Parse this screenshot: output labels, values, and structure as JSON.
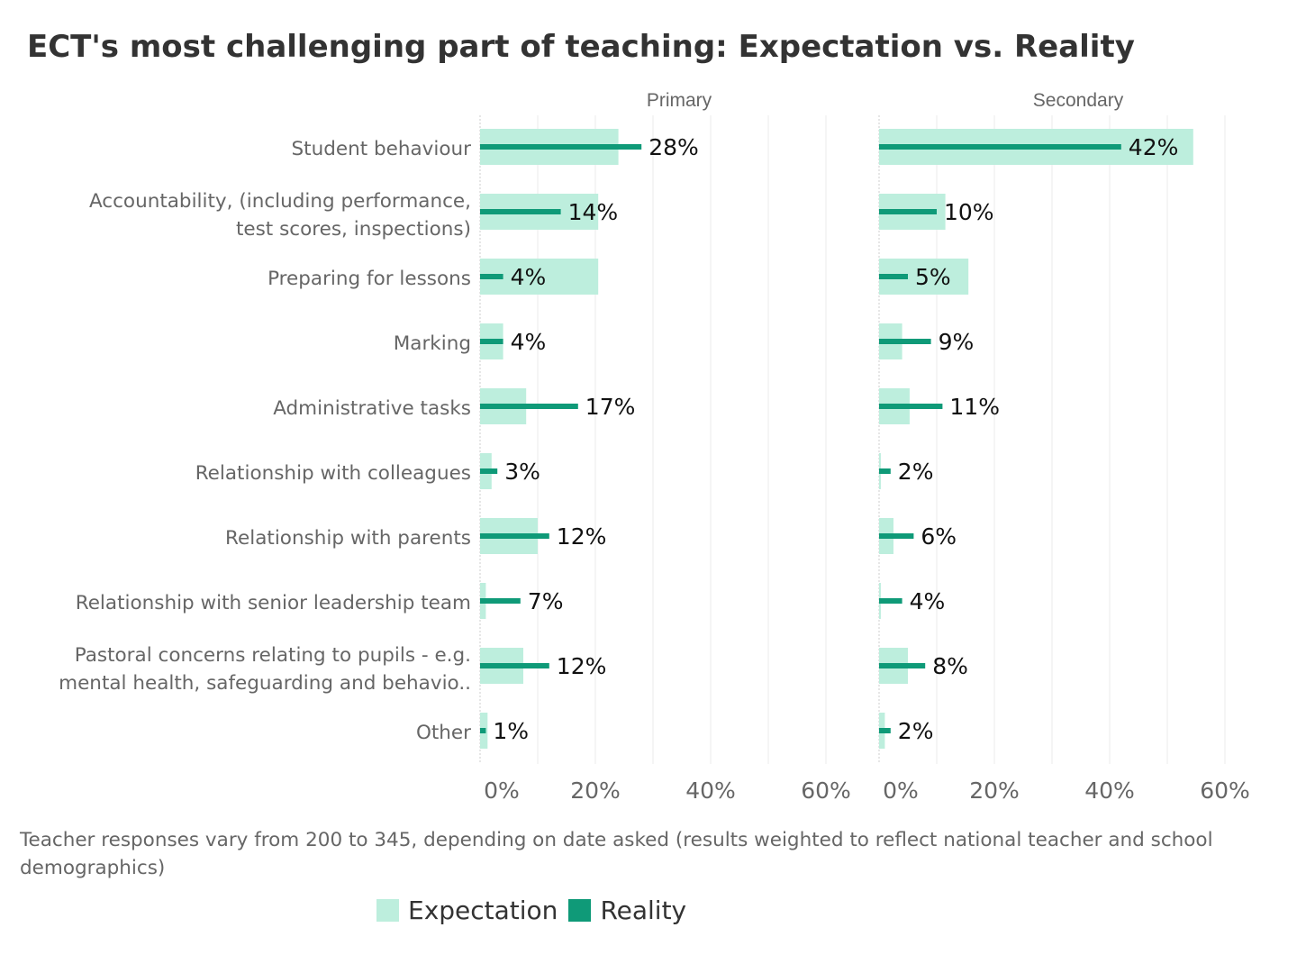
{
  "chart_data": {
    "type": "bar",
    "title": "ECT's most challenging part of teaching: Expectation vs. Reality",
    "facets": [
      "Primary",
      "Secondary"
    ],
    "categories": [
      [
        "Student behaviour"
      ],
      [
        "Accountability, (including performance,",
        "test scores, inspections)"
      ],
      [
        "Preparing for lessons"
      ],
      [
        "Marking"
      ],
      [
        "Administrative tasks"
      ],
      [
        "Relationship with colleagues"
      ],
      [
        "Relationship with parents"
      ],
      [
        "Relationship with senior leadership team"
      ],
      [
        "Pastoral concerns relating to pupils - e.g.",
        "mental health, safeguarding and behavio.."
      ],
      [
        "Other"
      ]
    ],
    "series": [
      {
        "name": "Expectation",
        "color": "#bdeedd",
        "Primary": [
          24,
          20.5,
          20.5,
          4,
          8,
          2,
          10,
          1,
          7.5,
          1.3
        ],
        "Secondary": [
          54.5,
          11.5,
          15.5,
          4,
          5.3,
          0.3,
          2.5,
          0.3,
          5,
          1
        ]
      },
      {
        "name": "Reality",
        "color": "#0f9a78",
        "Primary": [
          28,
          14,
          4,
          4,
          17,
          3,
          12,
          7,
          12,
          1
        ],
        "Secondary": [
          42,
          10,
          5,
          9,
          11,
          2,
          6,
          4,
          8,
          2
        ]
      }
    ],
    "data_labels": {
      "Primary": [
        "28%",
        "14%",
        "4%",
        "4%",
        "17%",
        "3%",
        "12%",
        "7%",
        "12%",
        "1%"
      ],
      "Secondary": [
        "42%",
        "10%",
        "5%",
        "9%",
        "11%",
        "2%",
        "6%",
        "4%",
        "8%",
        "2%"
      ]
    },
    "xlim": [
      0,
      65
    ],
    "xticks": [
      0,
      20,
      40,
      60
    ],
    "xtick_labels": [
      "0%",
      "20%",
      "40%",
      "60%"
    ],
    "grid": true,
    "legend_position": "bottom"
  },
  "footnote": "Teacher responses vary from 200 to 345, depending on date asked (results weighted to reflect national teacher and school demographics)",
  "legend": [
    "Expectation",
    "Reality"
  ]
}
